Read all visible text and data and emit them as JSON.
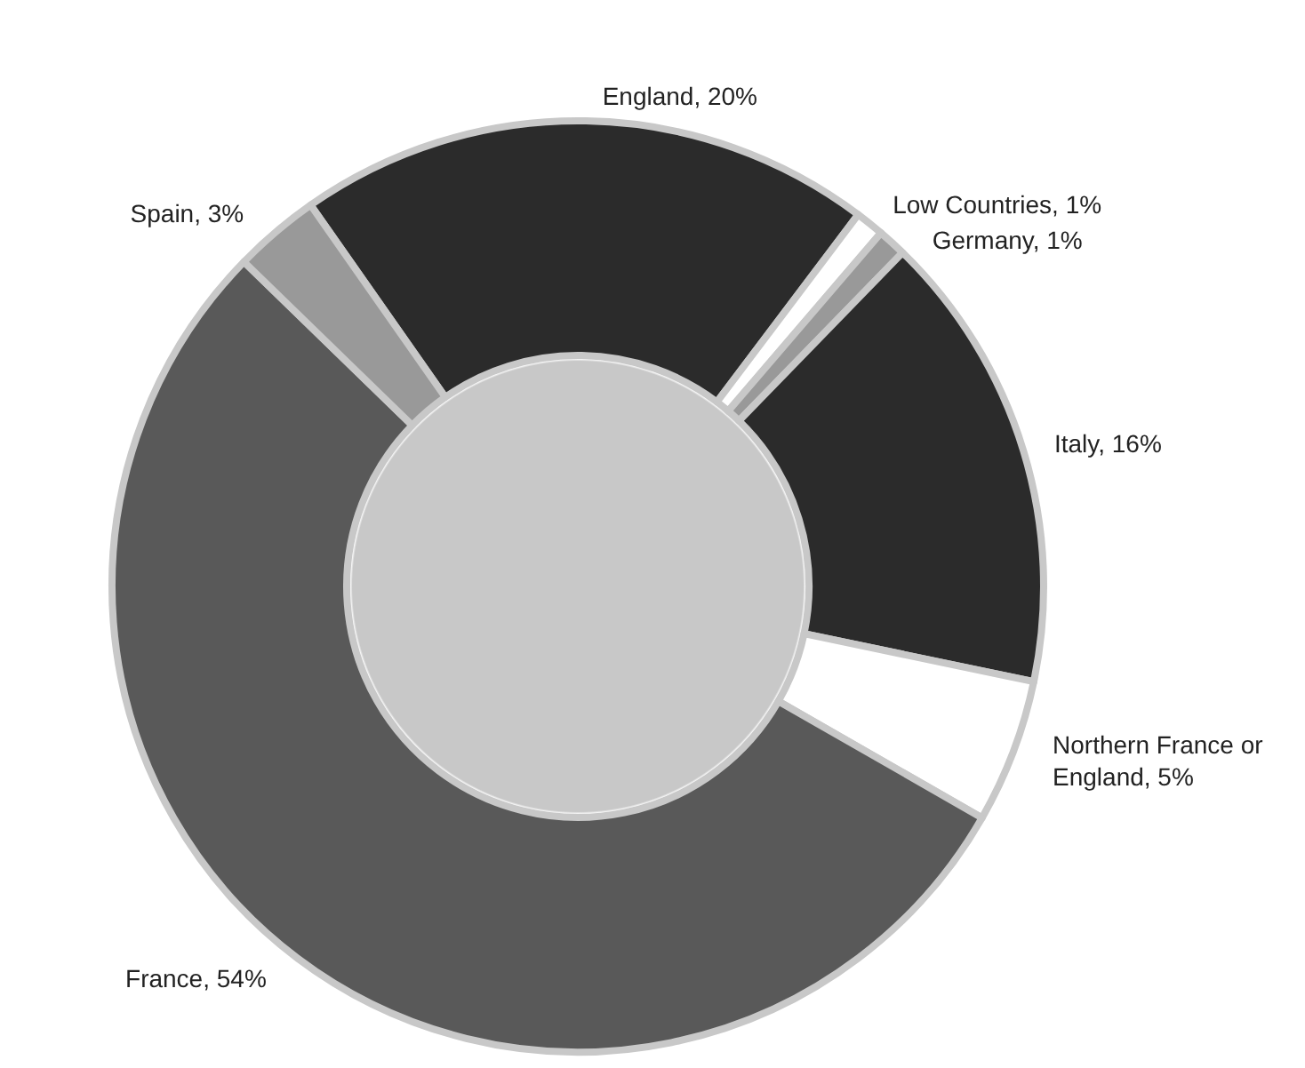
{
  "chart_data": {
    "type": "donut",
    "categories": [
      "England",
      "Low Countries",
      "Germany",
      "Italy",
      "Northern France or England",
      "France",
      "Spain"
    ],
    "values": [
      20,
      1,
      1,
      16,
      5,
      54,
      3
    ],
    "value_labels": [
      "20%",
      "1%",
      "1%",
      "16%",
      "5%",
      "54%",
      "3%"
    ],
    "colors": [
      "#2b2b2b",
      "#ffffff",
      "#999999",
      "#2b2b2b",
      "#ffffff",
      "#595959",
      "#999999"
    ]
  }
}
